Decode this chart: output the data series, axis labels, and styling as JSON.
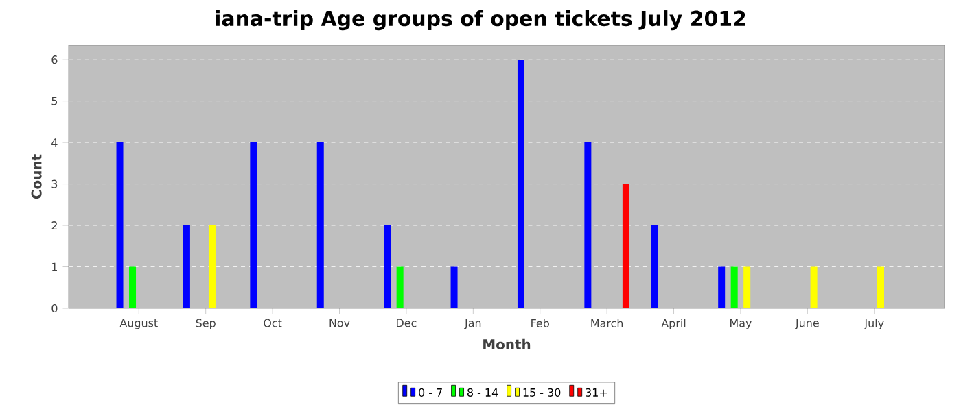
{
  "chart_data": {
    "type": "bar",
    "title": "iana-trip Age groups of open tickets July 2012",
    "xlabel": "Month",
    "ylabel": "Count",
    "categories": [
      "August",
      "Sep",
      "Oct",
      "Nov",
      "Dec",
      "Jan",
      "Feb",
      "March",
      "April",
      "May",
      "June",
      "July"
    ],
    "series": [
      {
        "name": "0 - 7",
        "color": "#0000ff",
        "values": [
          4,
          2,
          4,
          4,
          2,
          1,
          6,
          4,
          2,
          1,
          null,
          null
        ]
      },
      {
        "name": "8 - 14",
        "color": "#00ff00",
        "values": [
          1,
          null,
          null,
          null,
          1,
          null,
          null,
          null,
          null,
          1,
          null,
          null
        ]
      },
      {
        "name": "15 - 30",
        "color": "#ffff00",
        "values": [
          null,
          2,
          null,
          null,
          null,
          null,
          null,
          null,
          null,
          1,
          1,
          1
        ]
      },
      {
        "name": "31+",
        "color": "#ff0000",
        "values": [
          null,
          null,
          null,
          null,
          null,
          null,
          null,
          3,
          null,
          null,
          null,
          null
        ]
      }
    ],
    "ylim": [
      0,
      6.35
    ],
    "yticks": [
      0,
      1,
      2,
      3,
      4,
      5,
      6
    ],
    "grid": "y",
    "legend": "bottom"
  }
}
